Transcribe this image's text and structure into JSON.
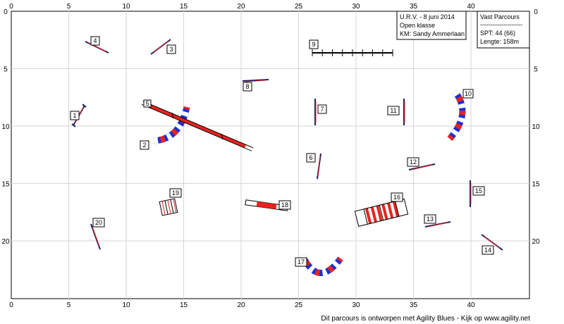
{
  "ruler": {
    "x_ticks": [
      "0",
      "5",
      "10",
      "15",
      "20",
      "25",
      "30",
      "35",
      "40"
    ],
    "y_ticks": [
      "0",
      "5",
      "10",
      "15",
      "20"
    ]
  },
  "info_box": {
    "line1": "U.R.V. - 8 juni 2014",
    "line2": "Open klasse",
    "line3": "KM: Sandy Ammerlaan"
  },
  "course_box": {
    "line1": "Vast Parcours",
    "line2": "--------------------",
    "line3": "SPT:  44 (66)",
    "line4": "Lengte: 158m"
  },
  "footer": "Dit parcours is ontworpen met Agility Blues - Kijk op www.agility.net",
  "obstacles": [
    {
      "number": "1"
    },
    {
      "number": "2"
    },
    {
      "number": "3"
    },
    {
      "number": "4"
    },
    {
      "number": "5"
    },
    {
      "number": "6"
    },
    {
      "number": "7"
    },
    {
      "number": "8"
    },
    {
      "number": "9"
    },
    {
      "number": "10"
    },
    {
      "number": "11"
    },
    {
      "number": "12"
    },
    {
      "number": "13"
    },
    {
      "number": "14"
    },
    {
      "number": "15"
    },
    {
      "number": "16"
    },
    {
      "number": "17"
    },
    {
      "number": "18"
    },
    {
      "number": "19"
    },
    {
      "number": "20"
    }
  ],
  "colors": {
    "red": "#e8231e",
    "blue": "#1a2fd6",
    "navy": "#1a1f5e",
    "grid": "#d6d6d6",
    "border": "#000000"
  }
}
